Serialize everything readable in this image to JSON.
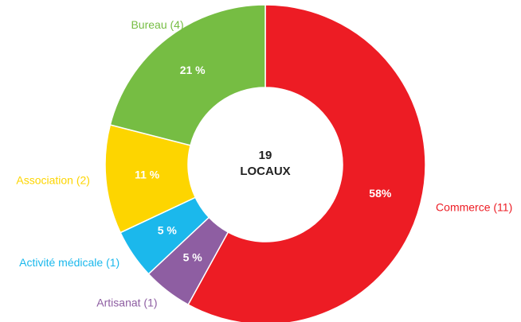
{
  "chart_data": {
    "type": "donut",
    "categories": [
      "Commerce (11)",
      "Artisanat (1)",
      "Activité médicale (1)",
      "Association (2)",
      "Bureau (4)"
    ],
    "values": [
      58,
      5,
      5,
      11,
      21
    ],
    "value_labels": [
      "58%",
      "5 %",
      "5 %",
      "11 %",
      "21 %"
    ],
    "colors": [
      "#ed1c24",
      "#8e5ea2",
      "#1bb8ec",
      "#fdd500",
      "#76bd43"
    ],
    "center_label": [
      "19",
      "LOCAUX"
    ]
  }
}
